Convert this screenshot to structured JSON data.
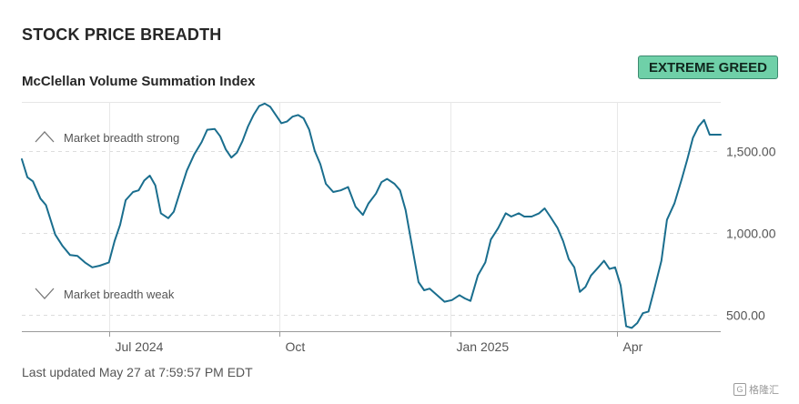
{
  "header": {
    "title": "STOCK PRICE BREADTH"
  },
  "badge": {
    "label": "EXTREME GREED",
    "color": "#6fd0a8"
  },
  "footer": {
    "updated": "Last updated May 27 at 7:59:57 PM EDT"
  },
  "watermark": {
    "text": "格隆汇",
    "logo": "G"
  },
  "chart_data": {
    "type": "line",
    "title": "McClellan Volume Summation Index",
    "ylim": [
      400,
      1800
    ],
    "grid": true,
    "y_ticks": [
      {
        "value": 500,
        "label": "500.00"
      },
      {
        "value": 1000,
        "label": "1,000.00"
      },
      {
        "value": 1500,
        "label": "1,500.00"
      }
    ],
    "x_ticks": [
      {
        "x": "2024-07-01",
        "label": "Jul 2024"
      },
      {
        "x": "2024-10-01",
        "label": "Oct"
      },
      {
        "x": "2025-01-01",
        "label": "Jan 2025"
      },
      {
        "x": "2025-04-01",
        "label": "Apr"
      }
    ],
    "x_range": [
      "2024-05-15",
      "2025-05-27"
    ],
    "annotations": {
      "strong": "Market breadth strong",
      "weak": "Market breadth weak"
    },
    "series": [
      {
        "color": "#1a6e8e",
        "points": [
          [
            "2024-05-15",
            1450
          ],
          [
            "2024-05-18",
            1340
          ],
          [
            "2024-05-21",
            1315
          ],
          [
            "2024-05-25",
            1210
          ],
          [
            "2024-05-28",
            1170
          ],
          [
            "2024-06-02",
            990
          ],
          [
            "2024-06-06",
            920
          ],
          [
            "2024-06-10",
            865
          ],
          [
            "2024-06-14",
            860
          ],
          [
            "2024-06-18",
            820
          ],
          [
            "2024-06-22",
            790
          ],
          [
            "2024-06-26",
            800
          ],
          [
            "2024-07-01",
            820
          ],
          [
            "2024-07-04",
            950
          ],
          [
            "2024-07-07",
            1050
          ],
          [
            "2024-07-10",
            1200
          ],
          [
            "2024-07-14",
            1250
          ],
          [
            "2024-07-17",
            1260
          ],
          [
            "2024-07-20",
            1320
          ],
          [
            "2024-07-23",
            1350
          ],
          [
            "2024-07-26",
            1290
          ],
          [
            "2024-07-29",
            1120
          ],
          [
            "2024-08-02",
            1090
          ],
          [
            "2024-08-05",
            1130
          ],
          [
            "2024-08-08",
            1240
          ],
          [
            "2024-08-12",
            1380
          ],
          [
            "2024-08-16",
            1480
          ],
          [
            "2024-08-20",
            1555
          ],
          [
            "2024-08-23",
            1630
          ],
          [
            "2024-08-27",
            1635
          ],
          [
            "2024-08-30",
            1590
          ],
          [
            "2024-09-02",
            1510
          ],
          [
            "2024-09-05",
            1460
          ],
          [
            "2024-09-08",
            1490
          ],
          [
            "2024-09-11",
            1560
          ],
          [
            "2024-09-14",
            1650
          ],
          [
            "2024-09-17",
            1720
          ],
          [
            "2024-09-20",
            1775
          ],
          [
            "2024-09-23",
            1790
          ],
          [
            "2024-09-26",
            1770
          ],
          [
            "2024-09-29",
            1720
          ],
          [
            "2024-10-02",
            1670
          ],
          [
            "2024-10-05",
            1680
          ],
          [
            "2024-10-08",
            1710
          ],
          [
            "2024-10-11",
            1720
          ],
          [
            "2024-10-14",
            1700
          ],
          [
            "2024-10-17",
            1630
          ],
          [
            "2024-10-20",
            1500
          ],
          [
            "2024-10-23",
            1420
          ],
          [
            "2024-10-26",
            1300
          ],
          [
            "2024-10-30",
            1250
          ],
          [
            "2024-11-03",
            1260
          ],
          [
            "2024-11-07",
            1280
          ],
          [
            "2024-11-11",
            1160
          ],
          [
            "2024-11-15",
            1110
          ],
          [
            "2024-11-18",
            1180
          ],
          [
            "2024-11-22",
            1240
          ],
          [
            "2024-11-25",
            1310
          ],
          [
            "2024-11-28",
            1330
          ],
          [
            "2024-12-02",
            1300
          ],
          [
            "2024-12-05",
            1260
          ],
          [
            "2024-12-08",
            1140
          ],
          [
            "2024-12-11",
            950
          ],
          [
            "2024-12-15",
            700
          ],
          [
            "2024-12-18",
            650
          ],
          [
            "2024-12-21",
            660
          ],
          [
            "2024-12-25",
            620
          ],
          [
            "2024-12-29",
            580
          ],
          [
            "2025-01-02",
            590
          ],
          [
            "2025-01-06",
            620
          ],
          [
            "2025-01-09",
            600
          ],
          [
            "2025-01-12",
            585
          ],
          [
            "2025-01-16",
            740
          ],
          [
            "2025-01-20",
            820
          ],
          [
            "2025-01-23",
            960
          ],
          [
            "2025-01-27",
            1030
          ],
          [
            "2025-01-31",
            1120
          ],
          [
            "2025-02-03",
            1100
          ],
          [
            "2025-02-07",
            1120
          ],
          [
            "2025-02-10",
            1100
          ],
          [
            "2025-02-14",
            1100
          ],
          [
            "2025-02-18",
            1120
          ],
          [
            "2025-02-21",
            1150
          ],
          [
            "2025-02-24",
            1100
          ],
          [
            "2025-02-28",
            1030
          ],
          [
            "2025-03-03",
            950
          ],
          [
            "2025-03-06",
            840
          ],
          [
            "2025-03-09",
            790
          ],
          [
            "2025-03-12",
            640
          ],
          [
            "2025-03-15",
            670
          ],
          [
            "2025-03-18",
            740
          ],
          [
            "2025-03-22",
            790
          ],
          [
            "2025-03-25",
            830
          ],
          [
            "2025-03-28",
            780
          ],
          [
            "2025-03-31",
            790
          ],
          [
            "2025-04-03",
            680
          ],
          [
            "2025-04-06",
            430
          ],
          [
            "2025-04-09",
            420
          ],
          [
            "2025-04-12",
            450
          ],
          [
            "2025-04-15",
            510
          ],
          [
            "2025-04-18",
            520
          ],
          [
            "2025-04-21",
            650
          ],
          [
            "2025-04-25",
            830
          ],
          [
            "2025-04-28",
            1080
          ],
          [
            "2025-05-02",
            1180
          ],
          [
            "2025-05-06",
            1330
          ],
          [
            "2025-05-09",
            1450
          ],
          [
            "2025-05-12",
            1580
          ],
          [
            "2025-05-15",
            1650
          ],
          [
            "2025-05-18",
            1690
          ],
          [
            "2025-05-21",
            1600
          ],
          [
            "2025-05-27",
            1600
          ]
        ]
      }
    ]
  }
}
